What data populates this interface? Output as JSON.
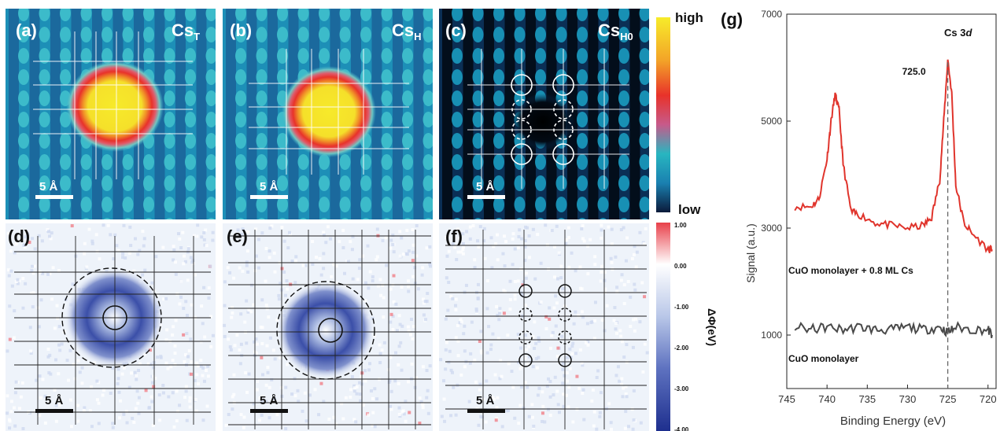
{
  "panels": {
    "a": {
      "label": "(a)",
      "title_main": "Cs",
      "title_sub": "T",
      "scale": "5 Å"
    },
    "b": {
      "label": "(b)",
      "title_main": "Cs",
      "title_sub": "H",
      "scale": "5 Å"
    },
    "c": {
      "label": "(c)",
      "title_main": "Cs",
      "title_sub": "H0",
      "scale": "5 Å"
    },
    "d": {
      "label": "(d)",
      "scale": "5 Å"
    },
    "e": {
      "label": "(e)",
      "scale": "5 Å"
    },
    "f": {
      "label": "(f)",
      "scale": "5 Å"
    }
  },
  "colorbar_top": {
    "high": "high",
    "low": "low"
  },
  "colorbar_bottom": {
    "ticks": [
      "1.00",
      "0.00",
      "-1.00",
      "-2.00",
      "-3.00",
      "-4.00"
    ],
    "label": "ΔΦ(eV)"
  },
  "colors": {
    "map_bg": "#1d8fb7",
    "map_dark": "#0b2f55",
    "map_core": "#f5e62a",
    "map_red": "#e8322a",
    "spectrum_red": "#e0342c",
    "spectrum_gray": "#4a4a4a"
  },
  "chart_data": {
    "type": "line",
    "panel_label": "(g)",
    "annotation": "Cs 3d",
    "annotation_main": "Cs 3",
    "annotation_italic": "d",
    "peak_label": "725.0",
    "xlabel": "Binding Energy (eV)",
    "ylabel": "Signal (a.u.)",
    "xlim": [
      745,
      719
    ],
    "ylim": [
      0,
      7000
    ],
    "x_ticks": [
      "745",
      "740",
      "735",
      "730",
      "725",
      "720"
    ],
    "y_ticks": [
      "1000",
      "3000",
      "5000",
      "7000"
    ],
    "series": [
      {
        "name": "CuO monolayer + 0.8 ML Cs",
        "x": [
          744,
          742,
          741,
          740,
          739.5,
          739,
          738.5,
          738,
          737,
          736,
          734,
          732,
          730,
          728,
          727,
          726,
          725.5,
          725,
          724.5,
          724,
          723,
          722,
          720,
          719.5
        ],
        "y": [
          3400,
          3400,
          3550,
          4300,
          5000,
          5500,
          5200,
          4200,
          3300,
          3250,
          3100,
          3050,
          3000,
          3050,
          3200,
          3900,
          5000,
          6150,
          5500,
          3800,
          3100,
          2900,
          2600,
          2600
        ]
      },
      {
        "name": "CuO monolayer",
        "x": [
          744,
          742,
          740,
          738,
          736,
          734,
          732,
          730,
          728,
          726,
          725,
          724,
          722,
          720,
          719.5
        ],
        "y": [
          1150,
          1100,
          1150,
          1100,
          1150,
          1100,
          1100,
          1150,
          1100,
          1150,
          1050,
          1150,
          1100,
          1100,
          1000
        ]
      }
    ],
    "marker_line_x": 725.0
  }
}
